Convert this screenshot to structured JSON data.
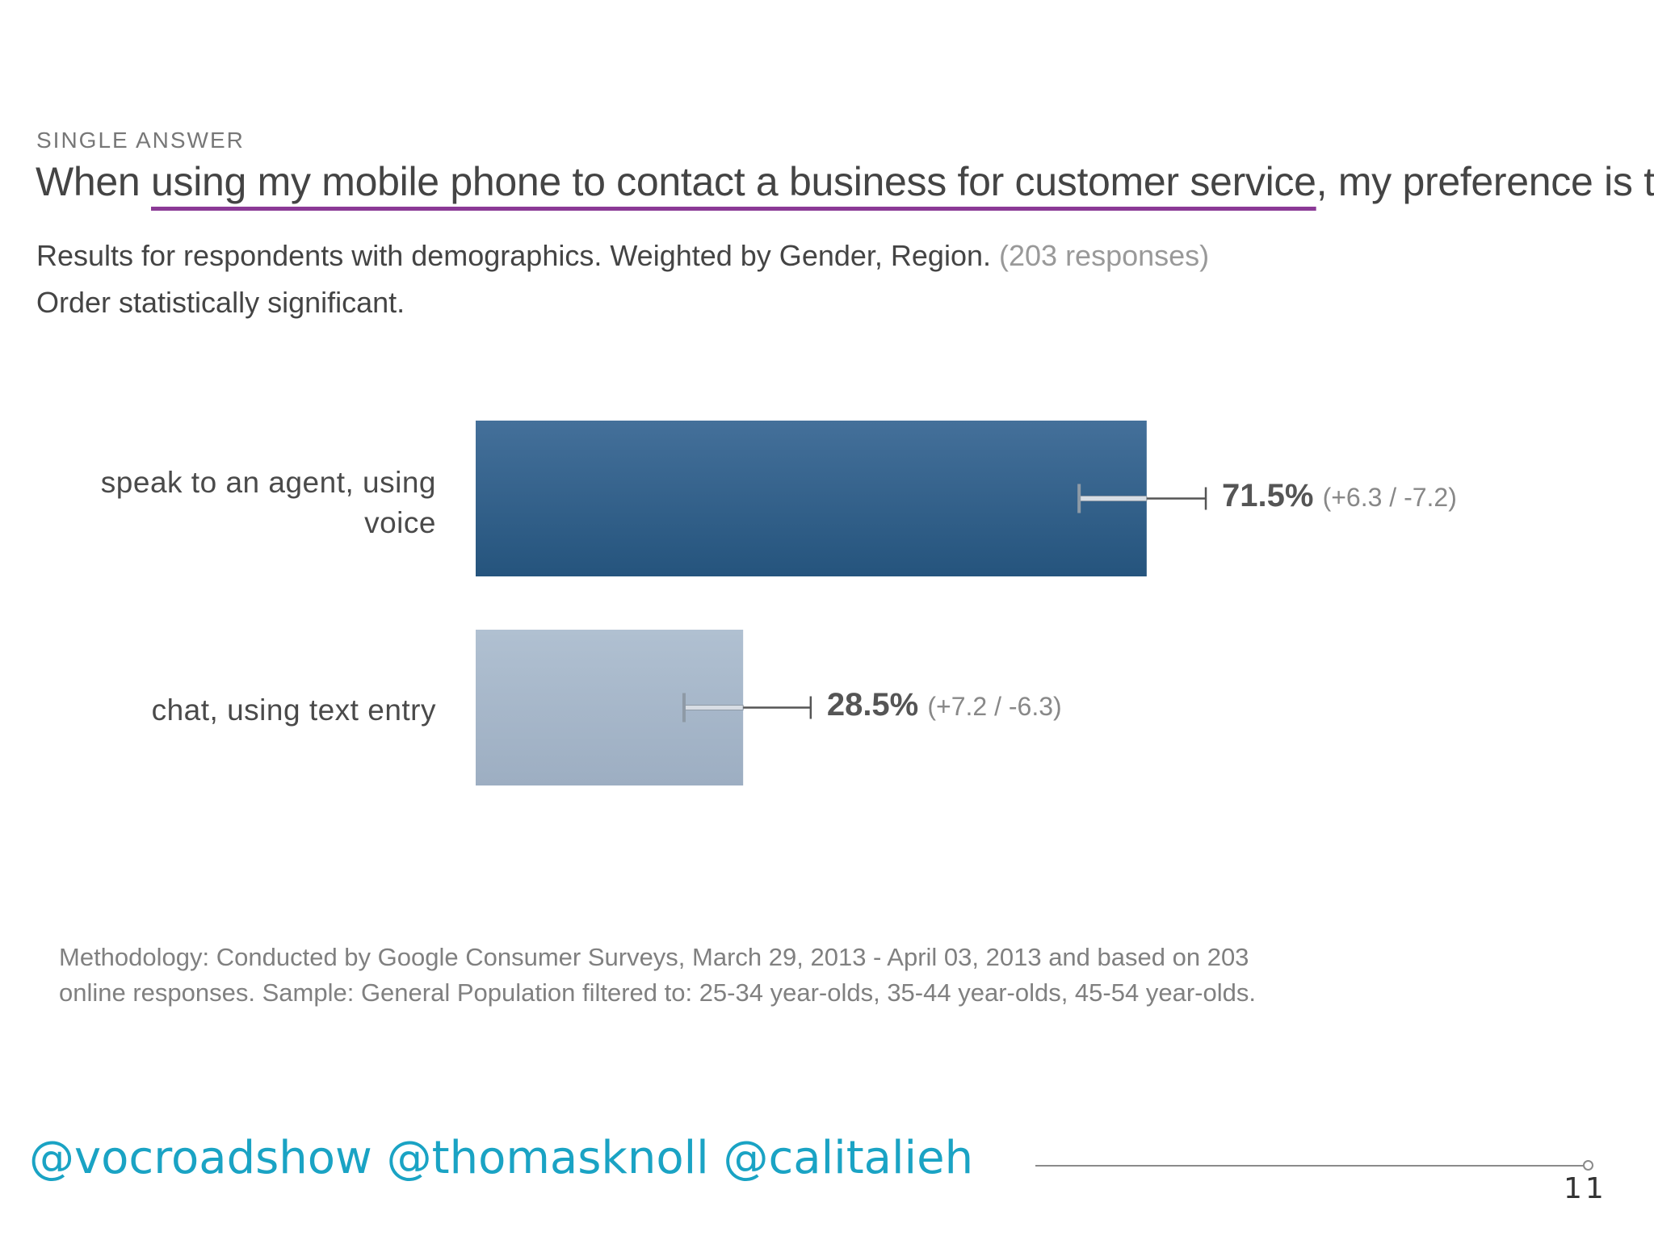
{
  "slide": {
    "handles": "@vocroadshow @thomasknoll @calitalieh",
    "page_number": "11"
  },
  "chart_data": {
    "type": "bar",
    "orientation": "horizontal",
    "eyebrow": "SINGLE ANSWER",
    "title": {
      "prefix": "When ",
      "highlight": "using my mobile phone to contact a business for customer service",
      "suffix": ", my preference is to"
    },
    "subtitle": "Results for respondents with demographics. Weighted by Gender, Region.",
    "responses": "(203 responses)",
    "note": "Order statistically significant.",
    "categories": [
      "speak to an agent, using voice",
      "chat, using text entry"
    ],
    "values": [
      71.5,
      28.5
    ],
    "error": [
      {
        "plus": 6.3,
        "minus": 7.2,
        "text": "(+6.3 / -7.2)"
      },
      {
        "plus": 7.2,
        "minus": 6.3,
        "text": "(+7.2 / -6.3)"
      }
    ],
    "value_labels": [
      "71.5%",
      "28.5%"
    ],
    "xlim": [
      0,
      100
    ],
    "colors": [
      "#2f6290",
      "#a6b8cb"
    ],
    "methodology": "Methodology: Conducted by Google Consumer Surveys, March 29, 2013 - April 03, 2013 and based on 203 online responses. Sample: General Population filtered to: 25-34 year-olds, 35-44 year-olds, 45-54 year-olds."
  }
}
